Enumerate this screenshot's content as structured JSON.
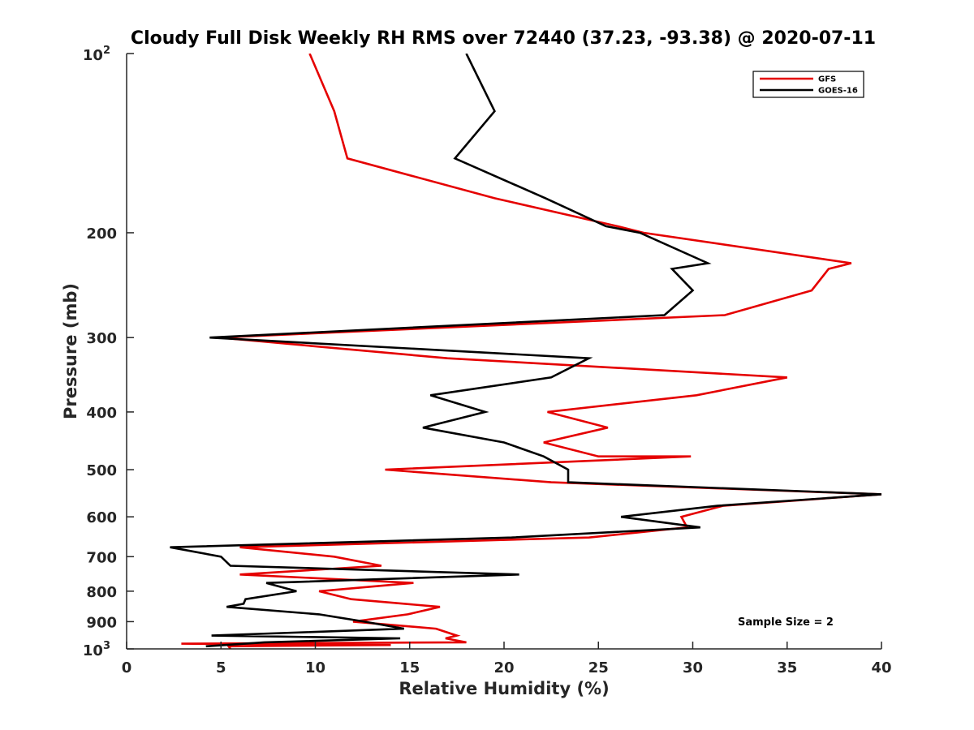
{
  "chart_data": {
    "type": "line",
    "title": "Cloudy Full Disk Weekly RH RMS over 72440 (37.23, -93.38) @ 2020-07-11",
    "xlabel": "Relative Humidity (%)",
    "ylabel": "Pressure (mb)",
    "xlim": [
      0,
      40
    ],
    "ylim": [
      100,
      1000
    ],
    "y_scale": "log",
    "y_reversed": true,
    "grid": false,
    "legend_position": "top-right",
    "x_ticks": [
      "0",
      "5",
      "10",
      "15",
      "20",
      "25",
      "30",
      "35",
      "40"
    ],
    "y_ticks": [
      {
        "value": 100,
        "base": "10",
        "exp": "2"
      },
      {
        "value": 200,
        "label": "200"
      },
      {
        "value": 300,
        "label": "300"
      },
      {
        "value": 400,
        "label": "400"
      },
      {
        "value": 500,
        "label": "500"
      },
      {
        "value": 600,
        "label": "600"
      },
      {
        "value": 700,
        "label": "700"
      },
      {
        "value": 800,
        "label": "800"
      },
      {
        "value": 900,
        "label": "900"
      },
      {
        "value": 1000,
        "base": "10",
        "exp": "3"
      }
    ],
    "annotation": "Sample Size = 2",
    "series": [
      {
        "name": "GFS",
        "color": "#e50000",
        "points": [
          [
            9.7,
            100
          ],
          [
            11.0,
            125
          ],
          [
            11.7,
            150
          ],
          [
            19.5,
            175
          ],
          [
            26.0,
            195
          ],
          [
            27.4,
            200
          ],
          [
            38.4,
            225
          ],
          [
            37.2,
            230
          ],
          [
            36.3,
            250
          ],
          [
            31.7,
            275
          ],
          [
            4.9,
            300
          ],
          [
            17.0,
            325
          ],
          [
            35.0,
            350
          ],
          [
            30.2,
            375
          ],
          [
            22.3,
            400
          ],
          [
            25.5,
            425
          ],
          [
            22.1,
            450
          ],
          [
            25.0,
            475
          ],
          [
            29.9,
            475
          ],
          [
            13.7,
            500
          ],
          [
            22.5,
            525
          ],
          [
            40.0,
            550
          ],
          [
            31.6,
            575
          ],
          [
            29.4,
            600
          ],
          [
            29.7,
            625
          ],
          [
            24.5,
            650
          ],
          [
            6.0,
            675
          ],
          [
            11.0,
            700
          ],
          [
            13.5,
            725
          ],
          [
            6.0,
            750
          ],
          [
            15.2,
            775
          ],
          [
            10.2,
            800
          ],
          [
            11.9,
            825
          ],
          [
            16.6,
            850
          ],
          [
            14.9,
            875
          ],
          [
            12.0,
            900
          ],
          [
            16.4,
            925
          ],
          [
            17.5,
            950
          ],
          [
            16.9,
            960
          ],
          [
            18.0,
            975
          ],
          [
            2.9,
            980
          ],
          [
            14.0,
            985
          ],
          [
            5.4,
            990
          ],
          [
            5.5,
            1000
          ]
        ]
      },
      {
        "name": "GOES-16",
        "color": "#000000",
        "points": [
          [
            18.0,
            100
          ],
          [
            19.5,
            125
          ],
          [
            17.4,
            150
          ],
          [
            22.2,
            175
          ],
          [
            25.4,
            195
          ],
          [
            27.2,
            200
          ],
          [
            30.8,
            225
          ],
          [
            28.9,
            230
          ],
          [
            30.0,
            250
          ],
          [
            28.5,
            275
          ],
          [
            4.4,
            300
          ],
          [
            24.5,
            325
          ],
          [
            22.5,
            350
          ],
          [
            16.1,
            375
          ],
          [
            19.0,
            400
          ],
          [
            15.7,
            425
          ],
          [
            20.0,
            450
          ],
          [
            22.1,
            475
          ],
          [
            23.4,
            500
          ],
          [
            23.4,
            525
          ],
          [
            40.0,
            550
          ],
          [
            31.3,
            575
          ],
          [
            26.2,
            600
          ],
          [
            30.4,
            625
          ],
          [
            20.4,
            650
          ],
          [
            2.3,
            675
          ],
          [
            5.0,
            700
          ],
          [
            5.5,
            725
          ],
          [
            20.8,
            750
          ],
          [
            7.4,
            775
          ],
          [
            9.0,
            800
          ],
          [
            6.3,
            825
          ],
          [
            6.2,
            840
          ],
          [
            5.3,
            850
          ],
          [
            10.2,
            875
          ],
          [
            12.6,
            900
          ],
          [
            14.7,
            925
          ],
          [
            4.5,
            950
          ],
          [
            14.5,
            960
          ],
          [
            7.3,
            975
          ],
          [
            4.2,
            990
          ]
        ]
      }
    ]
  }
}
